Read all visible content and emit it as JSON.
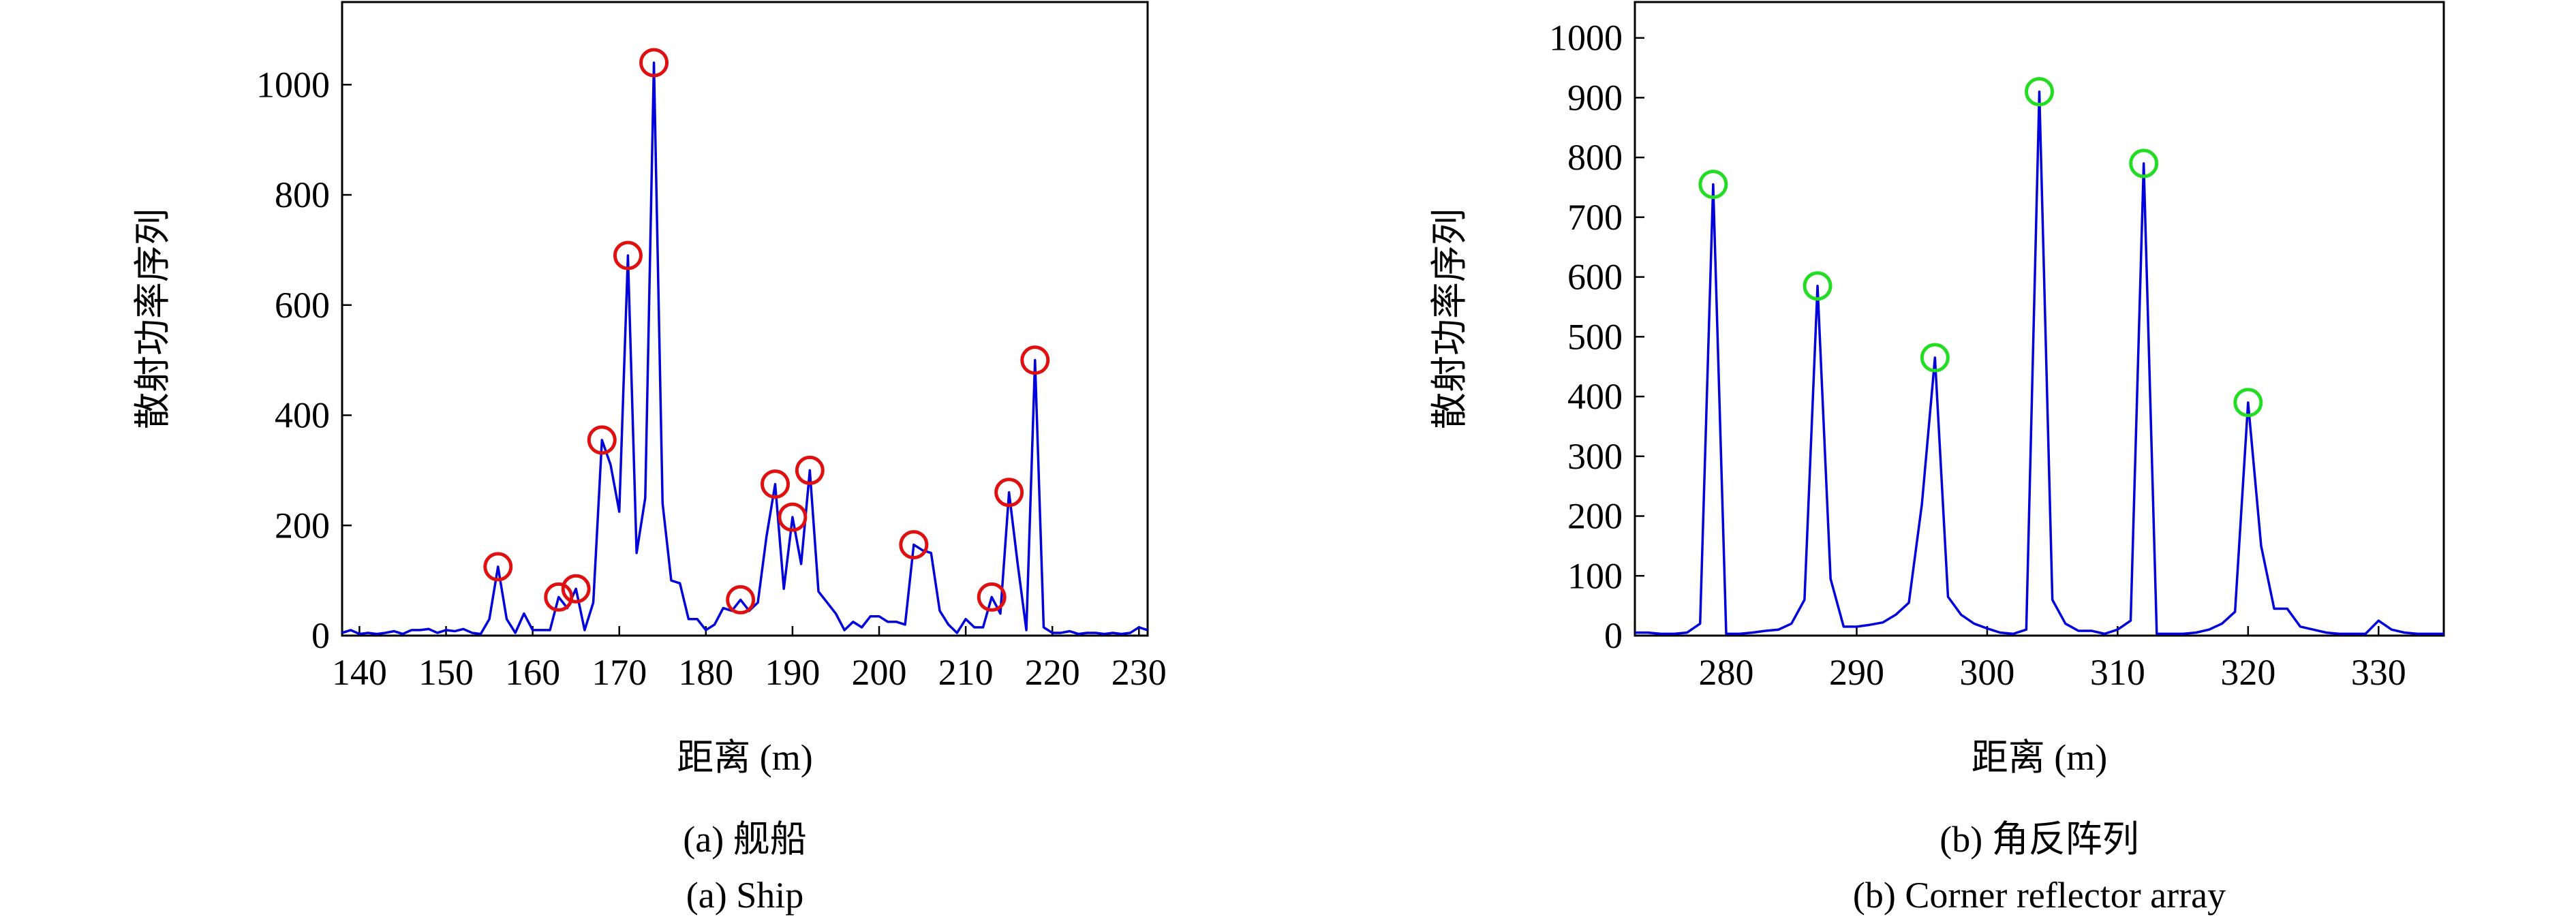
{
  "chart_data": [
    {
      "type": "line",
      "x_label": "距离 (m)",
      "y_label": "散射功率序列",
      "caption": [
        "(a) 舰船",
        "(a) Ship"
      ],
      "xlim": [
        138,
        231
      ],
      "ylim": [
        0,
        1150
      ],
      "xticks": [
        140,
        150,
        160,
        170,
        180,
        190,
        200,
        210,
        220,
        230
      ],
      "yticks": [
        0,
        200,
        400,
        600,
        800,
        1000
      ],
      "series": [
        {
          "color": "#0000dd",
          "x": [
            138,
            139,
            140,
            141,
            142,
            143,
            144,
            145,
            146,
            147,
            148,
            149,
            150,
            151,
            152,
            153,
            154,
            155,
            156,
            157,
            158,
            159,
            160,
            161,
            162,
            163,
            164,
            165,
            166,
            167,
            168,
            169,
            170,
            171,
            172,
            173,
            174,
            175,
            176,
            177,
            178,
            179,
            180,
            181,
            182,
            183,
            184,
            185,
            186,
            187,
            188,
            189,
            190,
            191,
            192,
            193,
            194,
            195,
            196,
            197,
            198,
            199,
            200,
            201,
            202,
            203,
            204,
            205,
            206,
            207,
            208,
            209,
            210,
            211,
            212,
            213,
            214,
            215,
            216,
            217,
            218,
            219,
            220,
            221,
            222,
            223,
            224,
            225,
            226,
            227,
            228,
            229,
            230,
            231
          ],
          "values": [
            5,
            10,
            3,
            5,
            3,
            5,
            8,
            3,
            10,
            10,
            12,
            5,
            10,
            8,
            12,
            5,
            3,
            30,
            125,
            30,
            5,
            40,
            10,
            10,
            10,
            70,
            50,
            85,
            10,
            60,
            355,
            310,
            225,
            690,
            150,
            250,
            1040,
            240,
            100,
            95,
            30,
            30,
            10,
            20,
            50,
            45,
            65,
            45,
            60,
            180,
            275,
            85,
            215,
            130,
            300,
            80,
            60,
            40,
            10,
            25,
            15,
            35,
            35,
            25,
            25,
            20,
            165,
            155,
            150,
            45,
            20,
            5,
            30,
            15,
            15,
            70,
            40,
            260,
            130,
            10,
            500,
            15,
            5,
            5,
            8,
            3,
            5,
            5,
            3,
            5,
            3,
            5,
            15,
            10
          ]
        },
        {
          "color": "#e01010",
          "marker": "circle",
          "x": [
            156,
            163,
            165,
            168,
            171,
            174,
            184,
            188,
            190,
            192,
            204,
            213,
            215,
            218
          ],
          "values": [
            125,
            70,
            85,
            355,
            690,
            1040,
            65,
            275,
            215,
            300,
            165,
            70,
            260,
            500
          ]
        }
      ]
    },
    {
      "type": "line",
      "x_label": "距离 (m)",
      "y_label": "散射功率序列",
      "caption": [
        "(b) 角反阵列",
        "(b) Corner reflector array"
      ],
      "xlim": [
        273,
        335
      ],
      "ylim": [
        0,
        1060
      ],
      "xticks": [
        280,
        290,
        300,
        310,
        320,
        330
      ],
      "yticks": [
        0,
        100,
        200,
        300,
        400,
        500,
        600,
        700,
        800,
        900,
        1000
      ],
      "series": [
        {
          "color": "#0000dd",
          "x": [
            273,
            274,
            275,
            276,
            277,
            278,
            279,
            280,
            281,
            282,
            283,
            284,
            285,
            286,
            287,
            288,
            289,
            290,
            291,
            292,
            293,
            294,
            295,
            296,
            297,
            298,
            299,
            300,
            301,
            302,
            303,
            304,
            305,
            306,
            307,
            308,
            309,
            310,
            311,
            312,
            313,
            314,
            315,
            316,
            317,
            318,
            319,
            320,
            321,
            322,
            323,
            324,
            325,
            326,
            327,
            328,
            329,
            330,
            331,
            332,
            333,
            334,
            335
          ],
          "values": [
            5,
            5,
            3,
            3,
            5,
            20,
            755,
            3,
            3,
            5,
            8,
            10,
            20,
            60,
            585,
            95,
            15,
            15,
            18,
            22,
            35,
            55,
            220,
            465,
            65,
            35,
            20,
            12,
            5,
            3,
            10,
            910,
            60,
            20,
            8,
            8,
            3,
            10,
            25,
            790,
            3,
            3,
            3,
            5,
            10,
            20,
            40,
            390,
            150,
            45,
            45,
            15,
            10,
            5,
            3,
            3,
            3,
            25,
            10,
            5,
            3,
            3,
            3
          ]
        },
        {
          "color": "#22dd22",
          "marker": "circle",
          "x": [
            279,
            287,
            296,
            304,
            312,
            320
          ],
          "values": [
            755,
            585,
            465,
            910,
            790,
            390
          ]
        }
      ]
    }
  ]
}
